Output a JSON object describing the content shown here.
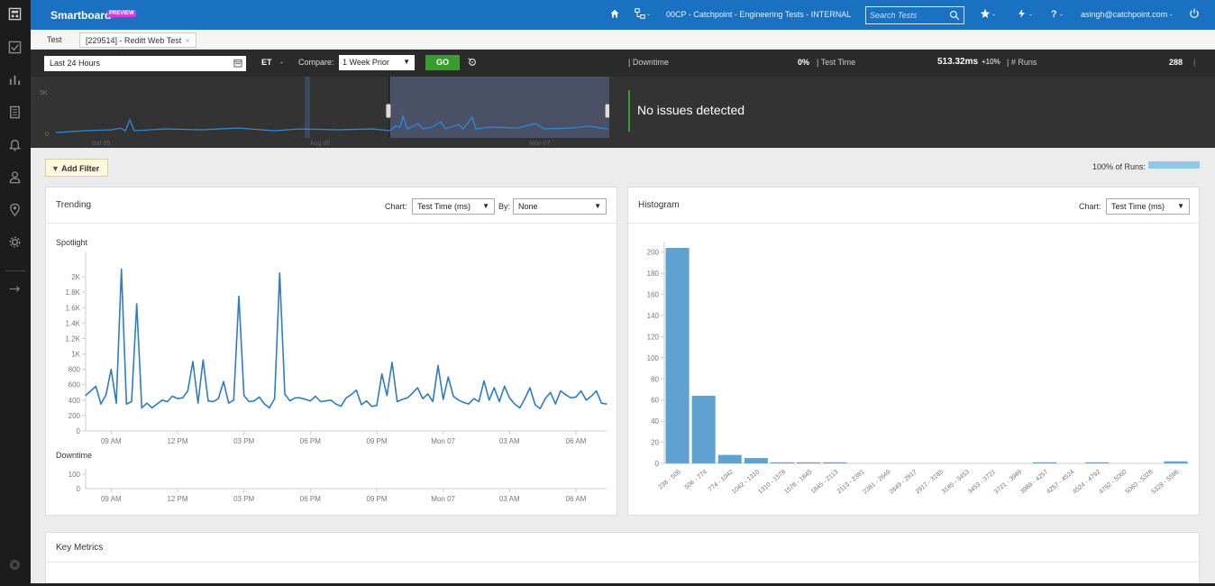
{
  "sidebar": {
    "icons": [
      "dashboard-icon",
      "check-square-icon",
      "bar-chart-icon",
      "document-icon",
      "bell-icon",
      "user-icon",
      "location-pin-icon",
      "gear-icon",
      "arrow-right-icon",
      "settings-circle-icon"
    ]
  },
  "topbar": {
    "brand": "Smartboard",
    "badge": "PREVIEW",
    "home_icon": "home-icon",
    "hierarchy_icon": "hierarchy-icon",
    "hierarchy_caret": "-",
    "context": "00CP - Catchpoint - Engineering Tests - INTERNAL",
    "search_placeholder": "Search Tests",
    "star_caret": "-",
    "bolt_caret": "-",
    "help": "?",
    "help_caret": "-",
    "user": "asingh@catchpoint.com -"
  },
  "tabs": {
    "test_label": "Test",
    "active_label": "[229514] - Reditt Web Test",
    "close": "×"
  },
  "controls": {
    "date_range": "Last 24 Hours",
    "timezone": "ET",
    "timezone_caret": "-",
    "compare_label": "Compare:",
    "compare_value": "1 Week Prior",
    "go_label": "GO"
  },
  "stats": {
    "downtime_label": "| Downtime",
    "downtime_value": "0%",
    "testtime_label": "| Test Time",
    "testtime_value": "513.32ms",
    "testtime_delta": "+10%",
    "runs_label": "| # Runs",
    "runs_value": "288",
    "runs_sep": "|"
  },
  "overview": {
    "y_labels": [
      "5K",
      "0"
    ],
    "x_labels": [
      "Sat 05",
      "Aug 06",
      "Mon 07"
    ],
    "message": "No issues detected"
  },
  "filter": {
    "add_label": "Add Filter",
    "runs_pct_label": "100% of Runs:"
  },
  "trending": {
    "title": "Trending",
    "chart_label": "Chart:",
    "chart_value": "Test Time (ms)",
    "by_label": "By:",
    "by_value": "None",
    "spotlight_label": "Spotlight",
    "downtime_label": "Downtime"
  },
  "histogram": {
    "title": "Histogram",
    "chart_label": "Chart:",
    "chart_value": "Test Time (ms)"
  },
  "key_metrics": {
    "title": "Key Metrics"
  },
  "chart_data": [
    {
      "type": "line",
      "title": "Spotlight",
      "ylabel": "Test Time (ms)",
      "ylim": [
        0,
        2200
      ],
      "y_ticks": [
        0,
        200,
        400,
        600,
        800,
        1000,
        1200,
        1400,
        1600,
        1800,
        2000
      ],
      "y_tick_labels": [
        "0",
        "200",
        "400",
        "600",
        "800",
        "1K",
        "1.2K",
        "1.4K",
        "1.6K",
        "1.8K",
        "2K"
      ],
      "x_tick_labels": [
        "09 AM",
        "12 PM",
        "03 PM",
        "06 PM",
        "09 PM",
        "Mon 07",
        "03 AM",
        "06 AM"
      ],
      "x_tick_index": [
        5,
        18,
        31,
        44,
        57,
        70,
        83,
        96
      ],
      "values": [
        460,
        520,
        580,
        350,
        470,
        800,
        360,
        2100,
        350,
        380,
        1650,
        300,
        360,
        300,
        350,
        400,
        380,
        450,
        420,
        430,
        520,
        900,
        360,
        920,
        390,
        380,
        420,
        640,
        360,
        400,
        1750,
        460,
        380,
        390,
        440,
        350,
        300,
        420,
        2050,
        480,
        390,
        430,
        430,
        410,
        390,
        450,
        380,
        390,
        400,
        350,
        320,
        430,
        470,
        530,
        340,
        390,
        320,
        330,
        740,
        460,
        890,
        380,
        410,
        430,
        490,
        560,
        420,
        480,
        380,
        850,
        410,
        700,
        450,
        400,
        370,
        350,
        420,
        380,
        650,
        400,
        560,
        380,
        580,
        430,
        350,
        300,
        420,
        560,
        340,
        290,
        420,
        500,
        350,
        520,
        470,
        430,
        440,
        520,
        400,
        450,
        520,
        360,
        350
      ]
    },
    {
      "type": "line",
      "title": "Downtime",
      "ylim": [
        0,
        100
      ],
      "y_tick_labels": [
        "0",
        "100"
      ],
      "x_tick_labels": [
        "09 AM",
        "12 PM",
        "03 PM",
        "06 PM",
        "09 PM",
        "Mon 07",
        "03 AM",
        "06 AM"
      ],
      "values": []
    },
    {
      "type": "bar",
      "title": "Histogram",
      "ylim": [
        0,
        210
      ],
      "y_ticks": [
        0,
        20,
        40,
        60,
        80,
        100,
        120,
        140,
        160,
        180,
        200
      ],
      "categories": [
        "238 - 506",
        "506 - 774",
        "774 - 1042",
        "1042 - 1310",
        "1310 - 1578",
        "1578 - 1845",
        "1845 - 2113",
        "2113 - 2381",
        "2381 - 2649",
        "2649 - 2917",
        "2917 - 3185",
        "3185 - 3453",
        "3453 - 3721",
        "3721 - 3989",
        "3989 - 4257",
        "4257 - 4524",
        "4524 - 4792",
        "4792 - 5060",
        "5060 - 5328",
        "5328 - 5596"
      ],
      "values": [
        204,
        64,
        8,
        5,
        1,
        1,
        1,
        0,
        0,
        0,
        0,
        0,
        0,
        0,
        1,
        0,
        1,
        0,
        0,
        2
      ]
    }
  ]
}
